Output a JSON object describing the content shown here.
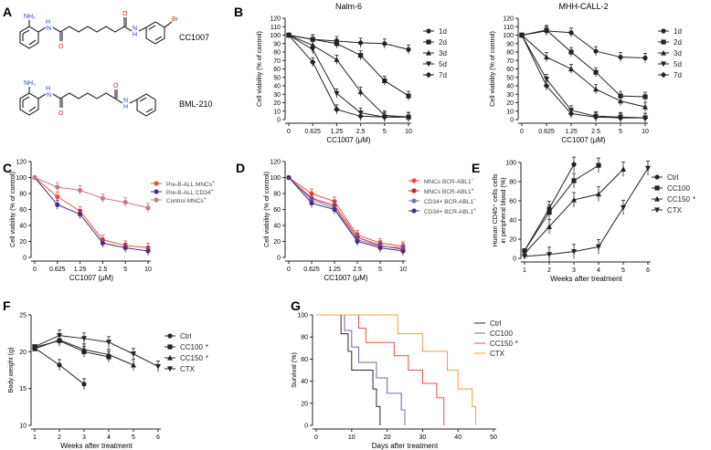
{
  "panels": {
    "A": {
      "letter": "A",
      "compounds": [
        "CC1007",
        "BML-210"
      ]
    },
    "B": {
      "letter": "B"
    },
    "C": {
      "letter": "C"
    },
    "D": {
      "letter": "D"
    },
    "E": {
      "letter": "E"
    },
    "F": {
      "letter": "F"
    },
    "G": {
      "letter": "G"
    }
  },
  "chemistry": {
    "nh2": "NH₂",
    "h": "H",
    "n": "N",
    "o": "O",
    "br": "Br"
  },
  "chart_data": [
    {
      "id": "B1",
      "type": "line",
      "title": "Nalm-6",
      "xlabel": "CC1007 (μM)",
      "ylabel": "Cell viability (% of control)",
      "categories": [
        "0",
        "0.625",
        "1.25",
        "2.5",
        "5",
        "10"
      ],
      "ylim": [
        0,
        120
      ],
      "yticks": [
        0,
        10,
        20,
        30,
        40,
        50,
        60,
        70,
        80,
        90,
        100,
        110,
        120
      ],
      "series": [
        {
          "name": "1d",
          "marker": "circle",
          "values": [
            100,
            95,
            93,
            91,
            90,
            83
          ]
        },
        {
          "name": "2d",
          "marker": "square",
          "values": [
            100,
            95,
            90,
            76,
            46,
            28
          ]
        },
        {
          "name": "3d",
          "marker": "triangle",
          "values": [
            100,
            88,
            71,
            33,
            5,
            3
          ]
        },
        {
          "name": "5d",
          "marker": "triangle-down",
          "values": [
            100,
            83,
            31,
            8,
            3,
            3
          ]
        },
        {
          "name": "7d",
          "marker": "diamond",
          "values": [
            100,
            68,
            12,
            4,
            3,
            3
          ]
        }
      ]
    },
    {
      "id": "B2",
      "type": "line",
      "title": "MHH-CALL-2",
      "xlabel": "CC1007 (μM)",
      "ylabel": "Cell viability (% of control)",
      "categories": [
        "0",
        "0.625",
        "1.25",
        "2.5",
        "5",
        "10"
      ],
      "ylim": [
        0,
        120
      ],
      "yticks": [
        0,
        10,
        20,
        30,
        40,
        50,
        60,
        70,
        80,
        90,
        100,
        110,
        120
      ],
      "series": [
        {
          "name": "1d",
          "marker": "circle",
          "values": [
            100,
            105,
            103,
            81,
            74,
            73
          ]
        },
        {
          "name": "2d",
          "marker": "square",
          "values": [
            100,
            106,
            80,
            56,
            28,
            27
          ]
        },
        {
          "name": "3d",
          "marker": "triangle",
          "values": [
            100,
            74,
            60,
            36,
            22,
            15
          ]
        },
        {
          "name": "5d",
          "marker": "triangle-down",
          "values": [
            100,
            48,
            11,
            4,
            3,
            2
          ]
        },
        {
          "name": "7d",
          "marker": "diamond",
          "values": [
            100,
            40,
            7,
            3,
            2,
            2
          ]
        }
      ]
    },
    {
      "id": "C",
      "type": "line",
      "xlabel": "CC1007 (μM)",
      "ylabel": "Cell viability (% of control)",
      "categories": [
        "0",
        "0.625",
        "1.25",
        "2.5",
        "5",
        "10"
      ],
      "ylim": [
        0,
        120
      ],
      "yticks": [
        0,
        20,
        40,
        60,
        80,
        100,
        120
      ],
      "series": [
        {
          "name": "Pre-B-ALL MNCs",
          "sup": "+",
          "color": "#e8503c",
          "values": [
            100,
            76,
            58,
            22,
            15,
            12
          ]
        },
        {
          "name": "Pre-B-ALL CD34",
          "sup": "+",
          "color": "#4d2d7d",
          "values": [
            100,
            66,
            54,
            18,
            12,
            8
          ]
        },
        {
          "name": "Control MNCs",
          "sup": "+",
          "color": "#c87a8e",
          "values": [
            100,
            88,
            84,
            74,
            69,
            62
          ]
        }
      ]
    },
    {
      "id": "D",
      "type": "line",
      "xlabel": "CC1007 (μM)",
      "ylabel": "Cell viability (% of control)",
      "categories": [
        "0",
        "0.625",
        "1.25",
        "2.5",
        "5",
        "10"
      ],
      "ylim": [
        0,
        120
      ],
      "yticks": [
        0,
        20,
        40,
        60,
        80,
        100,
        120
      ],
      "series": [
        {
          "name": "MNCs BCR-ABL1",
          "sup": "−",
          "color": "#e8503c",
          "values": [
            100,
            80,
            70,
            28,
            18,
            14
          ]
        },
        {
          "name": "MNCs BCR-ABL1",
          "sup": "+",
          "color": "#c0282d",
          "values": [
            100,
            74,
            65,
            25,
            15,
            10
          ]
        },
        {
          "name": "CD34+ BCR-ABL1",
          "sup": "−",
          "color": "#8070b0",
          "values": [
            100,
            72,
            62,
            22,
            14,
            12
          ]
        },
        {
          "name": "CD34+ BCR-ABL1",
          "sup": "+",
          "color": "#4d2d7d",
          "values": [
            100,
            68,
            60,
            20,
            12,
            8
          ]
        }
      ]
    },
    {
      "id": "E",
      "type": "line",
      "xlabel": "Weeks after treatment",
      "ylabel": "Human CD45⁺ cells in peripheral blood (%)",
      "categories": [
        "1",
        "2",
        "3",
        "4",
        "5",
        "6"
      ],
      "ylim": [
        0,
        100
      ],
      "yticks": [
        0,
        20,
        40,
        60,
        80,
        100
      ],
      "series": [
        {
          "name": "Ctrl",
          "marker": "circle",
          "x": [
            1,
            2,
            3
          ],
          "values": [
            8,
            52,
            98
          ],
          "star": false
        },
        {
          "name": "CC100",
          "marker": "square",
          "x": [
            1,
            2,
            3,
            4
          ],
          "values": [
            8,
            48,
            81,
            97
          ],
          "star": false
        },
        {
          "name": "CC150",
          "marker": "triangle",
          "x": [
            1,
            2,
            3,
            4,
            5
          ],
          "values": [
            5,
            33,
            61,
            67,
            93
          ],
          "star": true
        },
        {
          "name": "CTX",
          "marker": "triangle-down",
          "x": [
            1,
            2,
            3,
            4,
            5,
            6
          ],
          "values": [
            2,
            4,
            7,
            12,
            53,
            94
          ],
          "star": false
        }
      ]
    },
    {
      "id": "F",
      "type": "line",
      "xlabel": "Weeks after treatment",
      "ylabel": "Body weight (g)",
      "categories": [
        "1",
        "2",
        "3",
        "4",
        "5",
        "6"
      ],
      "ylim": [
        10,
        25
      ],
      "yticks": [
        10,
        15,
        20,
        25
      ],
      "series": [
        {
          "name": "Ctrl",
          "marker": "circle",
          "x": [
            1,
            2,
            3
          ],
          "values": [
            20.5,
            18.2,
            15.6
          ],
          "star": false
        },
        {
          "name": "CC100",
          "marker": "square",
          "x": [
            1,
            2,
            3,
            4
          ],
          "values": [
            20.6,
            21.5,
            20.0,
            19.3
          ],
          "star": true
        },
        {
          "name": "CC150",
          "marker": "triangle",
          "x": [
            1,
            2,
            3,
            4,
            5
          ],
          "values": [
            20.4,
            21.6,
            20.3,
            19.6,
            18.2
          ],
          "star": true
        },
        {
          "name": "CTX",
          "marker": "triangle-down",
          "x": [
            1,
            2,
            3,
            4,
            5,
            6
          ],
          "values": [
            20.7,
            22.2,
            21.8,
            21.3,
            19.7,
            18.0
          ],
          "star": false
        }
      ]
    },
    {
      "id": "G",
      "type": "line",
      "step": true,
      "xlabel": "Days after treatment",
      "ylabel": "Survival (%)",
      "xlim": [
        0,
        50
      ],
      "xticks": [
        0,
        10,
        20,
        30,
        40,
        50
      ],
      "ylim": [
        0,
        100
      ],
      "yticks": [
        0,
        20,
        40,
        60,
        80,
        100
      ],
      "series": [
        {
          "name": "Ctrl",
          "color": "#2a2a2a",
          "star": false,
          "x": [
            0,
            7,
            9,
            10,
            16,
            17,
            18
          ],
          "values": [
            100,
            83,
            67,
            50,
            33,
            17,
            0
          ]
        },
        {
          "name": "CC100",
          "color": "#8060a8",
          "star": false,
          "x": [
            0,
            8,
            10,
            12,
            17,
            20,
            24,
            25
          ],
          "values": [
            100,
            86,
            71,
            57,
            43,
            29,
            14,
            0
          ]
        },
        {
          "name": "CC150",
          "color": "#e8503c",
          "star": true,
          "x": [
            0,
            12,
            14,
            22,
            26,
            30,
            34,
            36
          ],
          "values": [
            100,
            88,
            75,
            63,
            50,
            38,
            25,
            0
          ]
        },
        {
          "name": "CTX",
          "color": "#f0a040",
          "star": false,
          "x": [
            0,
            23,
            30,
            37,
            40,
            44,
            45
          ],
          "values": [
            100,
            83,
            67,
            50,
            33,
            17,
            0
          ]
        }
      ]
    }
  ]
}
